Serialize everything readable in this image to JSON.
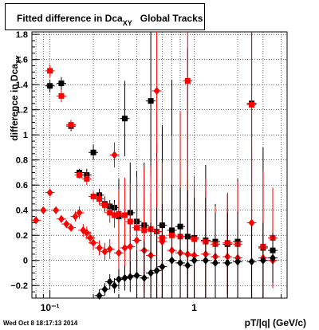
{
  "chart_data": {
    "type": "scatter",
    "title_main": "Fitted difference in Dca",
    "title_sub": "XY",
    "title_tail": "Global Tracks",
    "ylabel_main": "difference in Dca",
    "ylabel_sub": "XY",
    "xlabel": "pT/|q| (GeV/c)",
    "x_scale": "log",
    "xlim": [
      0.075,
      4.4
    ],
    "ylim": [
      -0.3,
      1.82
    ],
    "grid": true,
    "x_ticks": [
      {
        "value": 0.1,
        "label": "10⁻¹"
      },
      {
        "value": 1,
        "label": "1"
      }
    ],
    "y_ticks": [
      -0.2,
      0,
      0.2,
      0.4,
      0.6,
      0.8,
      1,
      1.2,
      1.4,
      1.6,
      1.8
    ],
    "y_tick_labels": [
      "−0.2",
      "0",
      "0.2",
      "0.4",
      "0.6",
      "0.8",
      "1",
      "1.2",
      "1.4",
      "1.6",
      "1.8"
    ],
    "series": [
      {
        "marker": "square",
        "color": "#000000",
        "x": [
          0.1,
          0.12,
          0.14,
          0.16,
          0.18,
          0.2,
          0.22,
          0.24,
          0.26,
          0.28,
          0.3,
          0.33,
          0.36,
          0.4,
          0.45,
          0.5,
          0.55,
          0.6,
          0.7,
          0.8,
          0.9,
          1.0,
          1.2,
          1.4,
          1.7,
          2.0,
          2.5,
          3.0,
          3.5
        ],
        "y": [
          1.39,
          1.41,
          1.07,
          0.7,
          0.68,
          0.86,
          0.52,
          0.45,
          0.43,
          0.42,
          0.35,
          1.13,
          0.38,
          0.31,
          0.28,
          1.27,
          0.23,
          0.28,
          0.24,
          0.27,
          0.19,
          0.18,
          0.16,
          0.15,
          0.13,
          0.15,
          1.25,
          0.1,
          0.08
        ],
        "err": [
          0.05,
          0.05,
          0.04,
          0.03,
          0.05,
          0.06,
          0.05,
          0.06,
          0.05,
          0.06,
          0.3,
          0.3,
          0.4,
          0.4,
          0.5,
          0.6,
          0.7,
          0.8,
          1.2,
          0.9,
          1.5,
          0.4,
          0.6,
          0.3,
          0.4,
          0.5,
          1.0,
          0.8,
          0.3
        ]
      },
      {
        "marker": "square",
        "color": "#ff0000",
        "x": [
          0.1,
          0.12,
          0.14,
          0.16,
          0.18,
          0.2,
          0.22,
          0.24,
          0.26,
          0.28,
          0.3,
          0.33,
          0.36,
          0.4,
          0.45,
          0.5,
          0.55,
          0.6,
          0.7,
          0.8,
          0.9,
          1.0,
          1.2,
          1.4,
          1.7,
          2.0,
          2.5,
          3.0,
          3.5
        ],
        "y": [
          1.51,
          1.31,
          1.08,
          0.68,
          0.65,
          0.51,
          0.49,
          0.44,
          0.38,
          0.36,
          0.37,
          0.36,
          0.31,
          0.26,
          0.24,
          0.25,
          0.23,
          0.18,
          0.2,
          0.19,
          1.43,
          0.17,
          0.15,
          0.13,
          0.14,
          0.13,
          1.24,
          0.11,
          0.18
        ],
        "err": [
          0.05,
          0.05,
          0.04,
          0.03,
          0.05,
          0.04,
          0.05,
          0.06,
          0.08,
          0.1,
          0.2,
          0.3,
          0.3,
          0.4,
          0.5,
          0.5,
          0.6,
          0.6,
          0.8,
          1.0,
          0.9,
          0.5,
          0.5,
          0.3,
          0.4,
          0.5,
          1.0,
          0.6,
          0.4
        ]
      },
      {
        "marker": "diamond",
        "color": "#ff0000",
        "x": [
          0.08,
          0.09,
          0.1,
          0.11,
          0.12,
          0.13,
          0.14,
          0.15,
          0.16,
          0.17,
          0.18,
          0.19,
          0.2,
          0.22,
          0.24,
          0.26,
          0.28,
          0.3,
          0.33,
          0.36,
          0.4,
          0.45,
          0.5,
          0.55,
          0.6,
          0.7,
          0.8,
          0.9,
          1.0,
          1.2,
          1.4,
          1.7,
          2.0,
          2.5,
          3.0,
          3.5
        ],
        "y": [
          0.32,
          0.4,
          0.54,
          0.4,
          0.33,
          0.29,
          0.26,
          0.35,
          0.38,
          0.24,
          0.22,
          0.18,
          0.14,
          0.1,
          0.07,
          0.09,
          0.84,
          0.06,
          0.1,
          0.11,
          0.16,
          0.08,
          0.04,
          1.35,
          0.15,
          0.08,
          0.06,
          0.05,
          0.04,
          0.05,
          0.03,
          0.03,
          0.02,
          0.3,
          0.02,
          0.0
        ],
        "err": [
          0.03,
          0.03,
          0.03,
          0.03,
          0.03,
          0.03,
          0.03,
          0.04,
          0.05,
          0.05,
          0.05,
          0.05,
          0.06,
          0.06,
          0.07,
          0.08,
          0.1,
          0.15,
          0.2,
          0.25,
          0.3,
          0.4,
          0.5,
          0.5,
          0.5,
          0.6,
          0.6,
          0.6,
          0.5,
          0.5,
          0.4,
          0.4,
          0.4,
          0.6,
          0.3,
          0.2
        ]
      },
      {
        "marker": "diamond",
        "color": "#000000",
        "x": [
          0.22,
          0.24,
          0.26,
          0.28,
          0.3,
          0.33,
          0.36,
          0.4,
          0.45,
          0.5,
          0.55,
          0.6,
          0.7,
          0.8,
          0.9,
          1.0,
          1.2,
          1.4,
          1.7,
          2.0,
          2.5,
          3.0,
          3.5
        ],
        "y": [
          -0.28,
          -0.23,
          -0.17,
          -0.2,
          -0.15,
          -0.14,
          -0.13,
          -0.12,
          -0.14,
          -0.1,
          -0.08,
          -0.05,
          0.0,
          -0.02,
          -0.04,
          0.0,
          0.0,
          -0.02,
          -0.02,
          -0.01,
          -0.01,
          0.0,
          0.02
        ],
        "err": [
          0.05,
          0.05,
          0.06,
          0.06,
          0.08,
          0.1,
          0.12,
          0.2,
          0.3,
          0.4,
          0.5,
          0.5,
          0.6,
          0.6,
          0.6,
          0.5,
          0.5,
          0.4,
          0.4,
          0.4,
          0.3,
          0.3,
          0.2
        ]
      }
    ]
  },
  "footer": {
    "timestamp": "Wed Oct  8 18:17:13 2014"
  }
}
